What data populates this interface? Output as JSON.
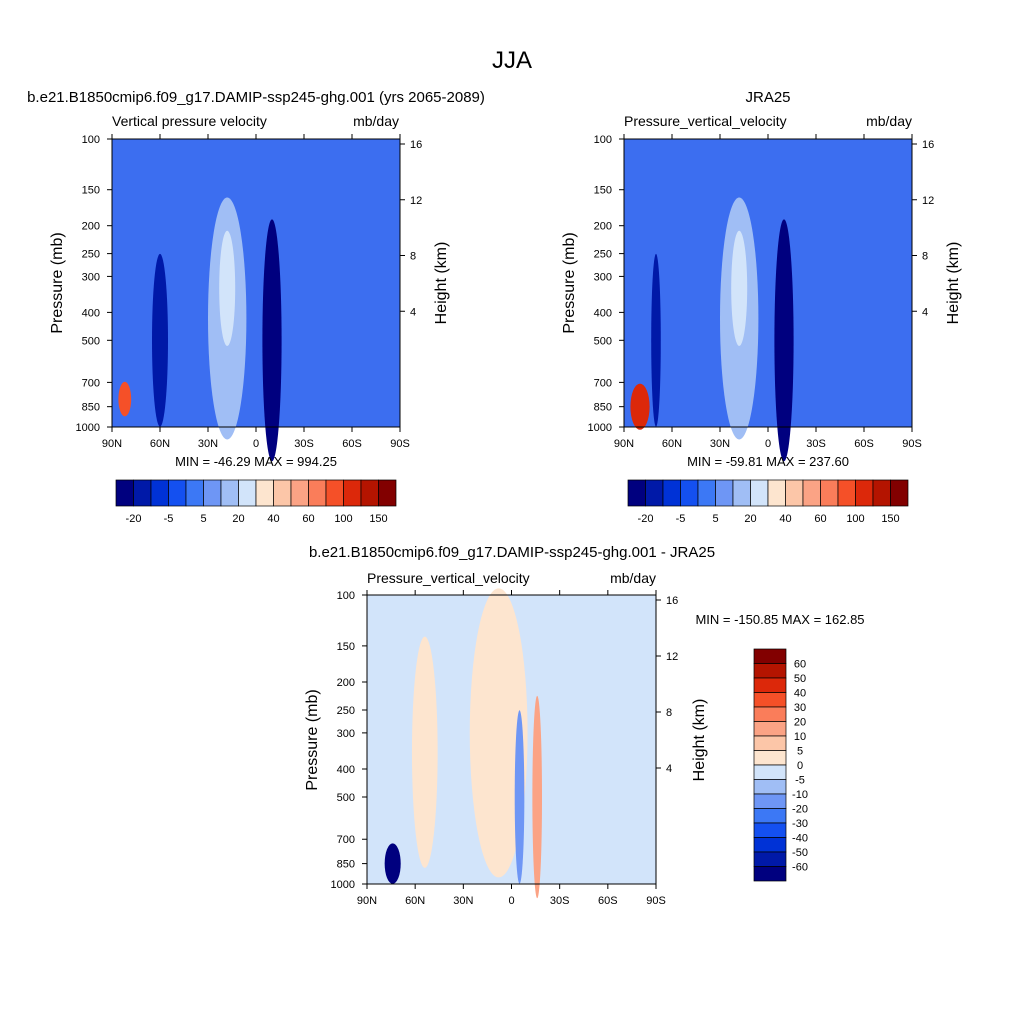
{
  "figure": {
    "title": "JJA"
  },
  "chart_data": [
    {
      "type": "heatmap",
      "title": "b.e21.B1850cmip6.f09_g17.DAMIP-ssp245-ghg.001 (yrs 2065-2089)",
      "subtitle_left": "Vertical pressure velocity",
      "subtitle_right": "mb/day",
      "xlabel": "",
      "ylabel": "Pressure (mb)",
      "ylabel_right": "Height (km)",
      "x_ticks": [
        "90N",
        "60N",
        "30N",
        "0",
        "30S",
        "60S",
        "90S"
      ],
      "y_ticks": [
        100,
        150,
        200,
        250,
        300,
        400,
        500,
        700,
        850,
        1000
      ],
      "y_right_ticks": [
        16,
        12,
        8,
        4
      ],
      "y_scale": "log",
      "y_reversed": true,
      "stats": "MIN = -46.29  MAX = 994.25",
      "colorbar": {
        "orientation": "horizontal",
        "colors": [
          "#00007f",
          "#0019a8",
          "#0032d6",
          "#1450f0",
          "#3c78f5",
          "#6e96f5",
          "#a0bef5",
          "#d2e4fa",
          "#fde5cf",
          "#fcc6a8",
          "#fba385",
          "#fa7d5a",
          "#f55028",
          "#dc280a",
          "#b41400",
          "#820000"
        ],
        "labels": [
          "-20",
          "-5",
          "5",
          "20",
          "40",
          "60",
          "100",
          "150"
        ]
      },
      "field": {
        "background": "#3c6ef0",
        "features": [
          {
            "lat": -10,
            "p": 500,
            "dlat": 6,
            "dp_log": 0.42,
            "color": "#00007f"
          },
          {
            "lat": 18,
            "p": 420,
            "dlat": 12,
            "dp_log": 0.42,
            "color": "#a0bef5"
          },
          {
            "lat": 18,
            "p": 330,
            "dlat": 5,
            "dp_log": 0.2,
            "color": "#d2e4fa"
          },
          {
            "lat": 82,
            "p": 800,
            "dlat": 4,
            "dp_log": 0.06,
            "color": "#f55028"
          },
          {
            "lat": 60,
            "p": 500,
            "dlat": 5,
            "dp_log": 0.3,
            "color": "#0019a8"
          }
        ]
      }
    },
    {
      "type": "heatmap",
      "title": "JRA25",
      "subtitle_left": "Pressure_vertical_velocity",
      "subtitle_right": "mb/day",
      "xlabel": "",
      "ylabel": "Pressure (mb)",
      "ylabel_right": "Height (km)",
      "x_ticks": [
        "90N",
        "60N",
        "30N",
        "0",
        "30S",
        "60S",
        "90S"
      ],
      "y_ticks": [
        100,
        150,
        200,
        250,
        300,
        400,
        500,
        700,
        850,
        1000
      ],
      "y_right_ticks": [
        16,
        12,
        8,
        4
      ],
      "y_scale": "log",
      "y_reversed": true,
      "stats": "MIN = -59.81  MAX = 237.60",
      "colorbar": {
        "orientation": "horizontal",
        "colors": [
          "#00007f",
          "#0019a8",
          "#0032d6",
          "#1450f0",
          "#3c78f5",
          "#6e96f5",
          "#a0bef5",
          "#d2e4fa",
          "#fde5cf",
          "#fcc6a8",
          "#fba385",
          "#fa7d5a",
          "#f55028",
          "#dc280a",
          "#b41400",
          "#820000"
        ],
        "labels": [
          "-20",
          "-5",
          "5",
          "20",
          "40",
          "60",
          "100",
          "150"
        ]
      },
      "field": {
        "background": "#3c6ef0",
        "features": [
          {
            "lat": -10,
            "p": 500,
            "dlat": 6,
            "dp_log": 0.42,
            "color": "#00007f"
          },
          {
            "lat": 18,
            "p": 420,
            "dlat": 12,
            "dp_log": 0.42,
            "color": "#a0bef5"
          },
          {
            "lat": 18,
            "p": 330,
            "dlat": 5,
            "dp_log": 0.2,
            "color": "#d2e4fa"
          },
          {
            "lat": 80,
            "p": 850,
            "dlat": 6,
            "dp_log": 0.08,
            "color": "#dc280a"
          },
          {
            "lat": 70,
            "p": 500,
            "dlat": 3,
            "dp_log": 0.3,
            "color": "#0019a8"
          }
        ]
      }
    },
    {
      "type": "heatmap",
      "title": "b.e21.B1850cmip6.f09_g17.DAMIP-ssp245-ghg.001 - JRA25",
      "subtitle_left": "Pressure_vertical_velocity",
      "subtitle_right": "mb/day",
      "xlabel": "",
      "ylabel": "Pressure (mb)",
      "ylabel_right": "Height (km)",
      "x_ticks": [
        "90N",
        "60N",
        "30N",
        "0",
        "30S",
        "60S",
        "90S"
      ],
      "y_ticks": [
        100,
        150,
        200,
        250,
        300,
        400,
        500,
        700,
        850,
        1000
      ],
      "y_right_ticks": [
        16,
        12,
        8,
        4
      ],
      "y_scale": "log",
      "y_reversed": true,
      "stats": "MIN = -150.85  MAX = 162.85",
      "colorbar": {
        "orientation": "vertical",
        "colors": [
          "#820000",
          "#b41400",
          "#dc280a",
          "#f55028",
          "#fa7d5a",
          "#fba385",
          "#fcc6a8",
          "#fde5cf",
          "#d2e4fa",
          "#a0bef5",
          "#6e96f5",
          "#3c78f5",
          "#1450f0",
          "#0032d6",
          "#0019a8",
          "#00007f"
        ],
        "labels": [
          "60",
          "50",
          "40",
          "30",
          "20",
          "10",
          "5",
          "0",
          "-5",
          "-10",
          "-20",
          "-30",
          "-40",
          "-50",
          "-60"
        ]
      },
      "field": {
        "background": "#d2e4fa",
        "features": [
          {
            "lat": 8,
            "p": 300,
            "dlat": 18,
            "dp_log": 0.5,
            "color": "#fde5cf"
          },
          {
            "lat": -16,
            "p": 500,
            "dlat": 3,
            "dp_log": 0.35,
            "color": "#fba385"
          },
          {
            "lat": -5,
            "p": 500,
            "dlat": 3,
            "dp_log": 0.3,
            "color": "#6e96f5"
          },
          {
            "lat": 74,
            "p": 850,
            "dlat": 5,
            "dp_log": 0.07,
            "color": "#00007f"
          },
          {
            "lat": 54,
            "p": 350,
            "dlat": 8,
            "dp_log": 0.4,
            "color": "#fde5cf"
          }
        ]
      }
    }
  ]
}
